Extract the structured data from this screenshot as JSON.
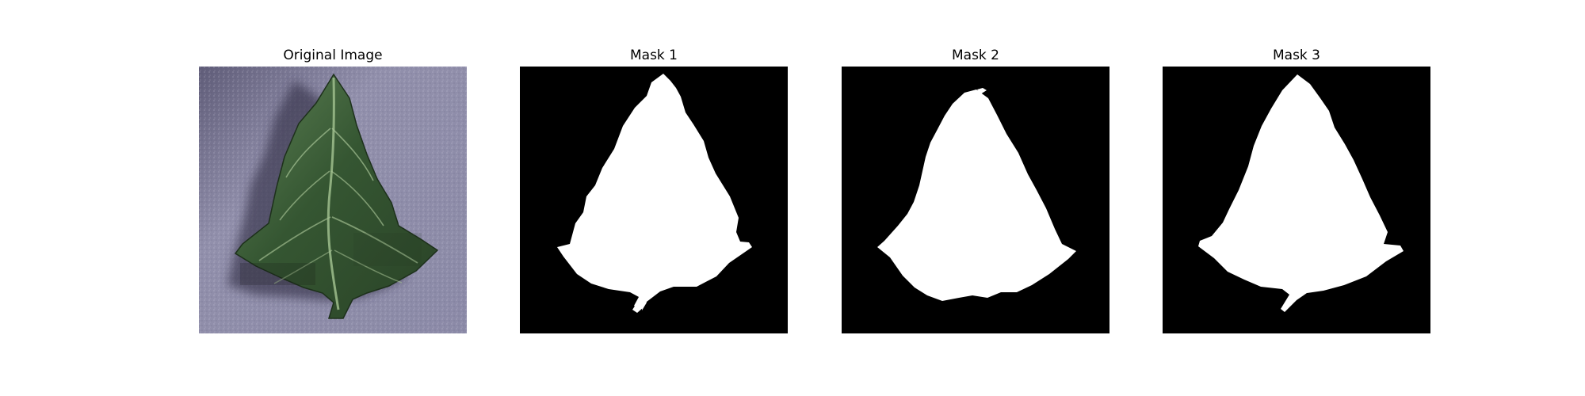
{
  "figure": {
    "panels": [
      {
        "title": "Original Image",
        "kind": "photo",
        "subject": "leaf-photo"
      },
      {
        "title": "Mask 1",
        "kind": "mask",
        "subject": "leaf-mask"
      },
      {
        "title": "Mask 2",
        "kind": "mask",
        "subject": "leaf-mask"
      },
      {
        "title": "Mask 3",
        "kind": "mask",
        "subject": "leaf-mask"
      }
    ]
  },
  "colors": {
    "background": "#ffffff",
    "mask_background": "#000000",
    "mask_foreground": "#ffffff",
    "photo_background": "#8e8ca6",
    "leaf_dark": "#2f4a2b",
    "leaf_mid": "#4f7247",
    "leaf_light": "#7fa06f"
  }
}
